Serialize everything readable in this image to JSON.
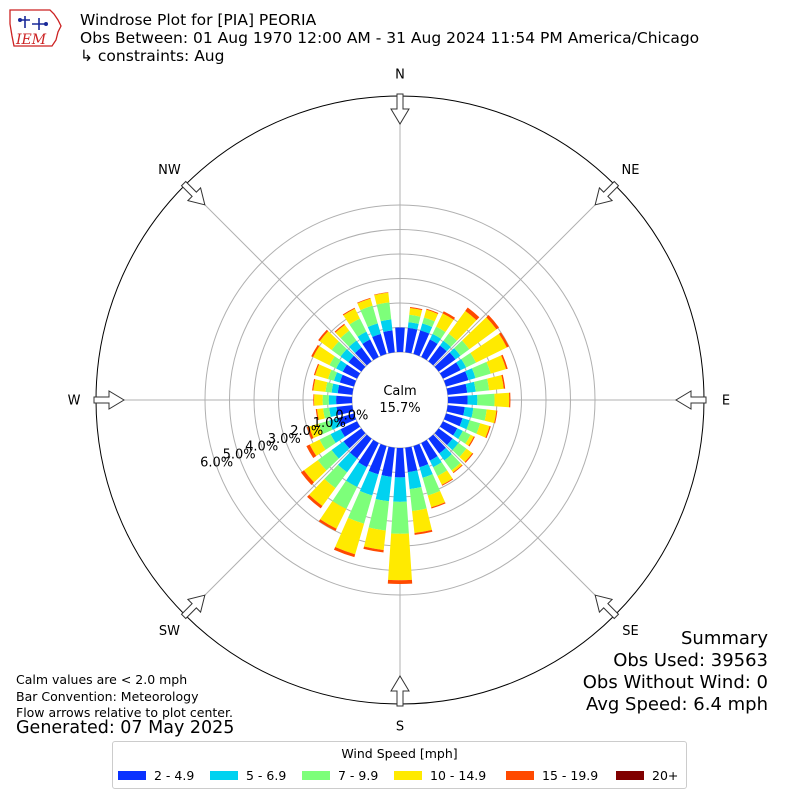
{
  "header": {
    "title": "Windrose Plot for [PIA] PEORIA",
    "subtitle": "Obs Between: 01 Aug 1970 12:00 AM - 31 Aug 2024 11:54 PM America/Chicago",
    "constraints": "↳ constraints: Aug",
    "logo_text": "IEM"
  },
  "notes": {
    "calm_def": "Calm values are < 2.0 mph",
    "bar_convention": "Bar Convention: Meteorology",
    "flow_arrows": "Flow arrows relative to plot center.",
    "generated": "Generated: 07 May 2025"
  },
  "summary": {
    "heading": "Summary",
    "obs_used": "Obs Used: 39563",
    "obs_without_wind": "Obs Without Wind: 0",
    "avg_speed": "Avg Speed: 6.4 mph"
  },
  "legend": {
    "title": "Wind Speed [mph]",
    "entries": [
      {
        "label": "2 - 4.9",
        "color": "#0a32ff"
      },
      {
        "label": "5 - 6.9",
        "color": "#00d2f0"
      },
      {
        "label": "7 - 9.9",
        "color": "#7dff7a"
      },
      {
        "label": "10 - 14.9",
        "color": "#ffea00"
      },
      {
        "label": "15 - 19.9",
        "color": "#ff4a00"
      },
      {
        "label": "20+",
        "color": "#800000"
      }
    ]
  },
  "chart_data": {
    "type": "windrose",
    "calm": {
      "label": "Calm",
      "value": "15.7%"
    },
    "compass_labels": [
      "N",
      "NE",
      "E",
      "SE",
      "S",
      "SW",
      "W",
      "NW"
    ],
    "radial_ticks": [
      "0.0%",
      "1.0%",
      "2.0%",
      "3.0%",
      "4.0%",
      "5.0%",
      "6.0%"
    ],
    "radial_range": [
      0,
      6
    ],
    "speed_bins": [
      "2 - 4.9",
      "5 - 6.9",
      "7 - 9.9",
      "10 - 14.9",
      "15 - 19.9",
      "20+"
    ],
    "directions_deg": [
      0,
      10,
      20,
      30,
      40,
      50,
      60,
      70,
      80,
      90,
      100,
      110,
      120,
      130,
      140,
      150,
      160,
      170,
      180,
      190,
      200,
      210,
      220,
      230,
      240,
      250,
      260,
      270,
      280,
      290,
      300,
      310,
      320,
      330,
      340,
      350
    ],
    "cumulative_percent": [
      [
        1.0,
        1.0,
        1.0,
        1.0,
        1.0,
        1.0
      ],
      [
        1.0,
        1.24,
        1.54,
        1.82,
        1.86,
        1.86
      ],
      [
        1.0,
        1.3,
        1.55,
        1.88,
        1.92,
        1.92
      ],
      [
        0.8,
        1.05,
        1.38,
        1.98,
        2.08,
        2.08
      ],
      [
        0.8,
        1.04,
        1.4,
        2.55,
        2.72,
        2.72
      ],
      [
        0.85,
        1.1,
        1.55,
        2.92,
        3.05,
        3.05
      ],
      [
        0.8,
        1.05,
        1.5,
        2.9,
        3.0,
        3.0
      ],
      [
        0.95,
        1.25,
        1.9,
        2.55,
        2.62,
        2.62
      ],
      [
        0.8,
        1.15,
        1.7,
        2.3,
        2.36,
        2.36
      ],
      [
        0.8,
        1.2,
        1.9,
        2.5,
        2.55,
        2.55
      ],
      [
        0.7,
        1.05,
        1.6,
        2.0,
        2.04,
        2.04
      ],
      [
        0.7,
        1.0,
        1.45,
        1.85,
        1.9,
        1.9
      ],
      [
        0.65,
        0.9,
        1.25,
        1.4,
        1.45,
        1.45
      ],
      [
        0.7,
        1.0,
        1.4,
        1.7,
        1.75,
        1.75
      ],
      [
        0.75,
        1.1,
        1.6,
        1.7,
        1.74,
        1.74
      ],
      [
        0.8,
        1.1,
        1.5,
        1.9,
        1.94,
        1.94
      ],
      [
        0.9,
        1.35,
        2.1,
        2.6,
        2.65,
        2.65
      ],
      [
        1.0,
        1.7,
        2.6,
        3.5,
        3.58,
        3.58
      ],
      [
        1.2,
        2.2,
        3.5,
        5.4,
        5.55,
        5.55
      ],
      [
        1.2,
        2.2,
        3.4,
        4.2,
        4.3,
        4.3
      ],
      [
        1.2,
        2.1,
        3.3,
        4.6,
        4.72,
        4.72
      ],
      [
        1.1,
        2.0,
        3.0,
        3.9,
        4.0,
        4.0
      ],
      [
        1.0,
        1.7,
        2.5,
        3.4,
        3.52,
        3.52
      ],
      [
        0.9,
        1.5,
        2.2,
        2.9,
        3.05,
        3.05
      ],
      [
        0.75,
        1.2,
        1.7,
        2.15,
        2.3,
        2.3
      ],
      [
        0.7,
        1.05,
        1.5,
        1.9,
        2.0,
        2.0
      ],
      [
        0.65,
        0.95,
        1.2,
        1.45,
        1.5,
        1.5
      ],
      [
        0.65,
        0.95,
        1.2,
        1.55,
        1.58,
        1.58
      ],
      [
        0.6,
        0.85,
        1.1,
        1.6,
        1.65,
        1.65
      ],
      [
        0.6,
        0.85,
        1.1,
        1.65,
        1.7,
        1.7
      ],
      [
        0.65,
        0.95,
        1.25,
        2.0,
        2.08,
        2.08
      ],
      [
        0.65,
        1.05,
        1.5,
        2.1,
        2.18,
        2.18
      ],
      [
        0.7,
        1.05,
        1.55,
        1.85,
        1.9,
        1.9
      ],
      [
        0.8,
        1.15,
        1.75,
        2.2,
        2.24,
        2.24
      ],
      [
        0.85,
        1.3,
        2.05,
        2.35,
        2.38,
        2.38
      ],
      [
        0.9,
        1.35,
        2.05,
        2.45,
        2.47,
        2.47
      ]
    ]
  }
}
